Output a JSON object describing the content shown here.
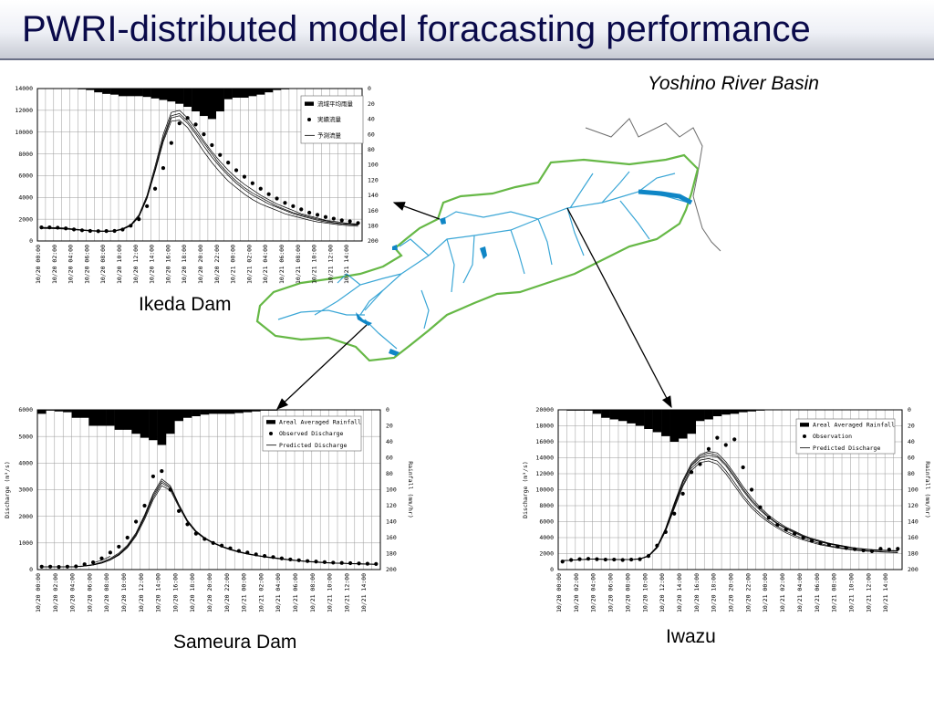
{
  "slide": {
    "title": "PWRI-distributed model foracasting performance",
    "basin_label": "Yoshino River Basin",
    "site_labels": {
      "ikeda": "Ikeda Dam",
      "sameura": "Sameura Dam",
      "iwazu": "Iwazu"
    }
  },
  "colors": {
    "title_text": "#0a0a4a",
    "basin_outline": "#66b846",
    "rivers": "#3aa6d6",
    "reservoirs": "#0f86c6",
    "rainfall_bars": "#000000",
    "observed": "#000000",
    "predicted": "#000000"
  },
  "chart_data": [
    {
      "id": "ikeda",
      "type": "bar+line+scatter",
      "site": "Ikeda Dam",
      "ylabel": "",
      "y2label": "",
      "ylim": [
        0,
        14000
      ],
      "yticks": [
        0,
        2000,
        4000,
        6000,
        8000,
        10000,
        12000,
        14000
      ],
      "y2lim": [
        0,
        200
      ],
      "y2ticks": [
        0,
        20,
        40,
        60,
        80,
        100,
        120,
        140,
        160,
        180,
        200
      ],
      "x_tick_labels": [
        "10/20 00:00",
        "10/20 02:00",
        "10/20 04:00",
        "10/20 06:00",
        "10/20 08:00",
        "10/20 10:00",
        "10/20 12:00",
        "10/20 14:00",
        "10/20 16:00",
        "10/20 18:00",
        "10/20 20:00",
        "10/20 22:00",
        "10/21 00:00",
        "10/21 02:00",
        "10/21 04:00",
        "10/21 06:00",
        "10/21 08:00",
        "10/21 10:00",
        "10/21 12:00",
        "10/21 14:00"
      ],
      "legend": [
        "流域平均雨量",
        "実績流量",
        "予測流量"
      ],
      "grid": true,
      "rainfall_hourly": [
        0,
        0,
        0,
        0,
        0,
        1,
        2,
        5,
        7,
        8,
        10,
        10,
        10,
        11,
        13,
        15,
        17,
        20,
        24,
        30,
        36,
        40,
        30,
        14,
        12,
        12,
        10,
        8,
        5,
        2,
        1,
        0,
        0,
        0,
        0,
        0,
        0,
        0,
        0,
        0
      ],
      "observed_time_h": [
        0,
        1,
        2,
        3,
        4,
        5,
        6,
        7,
        8,
        9,
        10,
        11,
        12,
        13,
        14,
        15,
        16,
        17,
        18,
        19,
        20,
        21,
        22,
        23,
        24,
        25,
        26,
        27,
        28,
        29,
        30,
        31,
        32,
        33,
        34,
        35,
        36,
        37,
        38,
        39
      ],
      "observed_discharge": [
        1250,
        1250,
        1220,
        1150,
        1060,
        980,
        920,
        900,
        910,
        920,
        1050,
        1400,
        2000,
        3200,
        4800,
        6700,
        9000,
        10800,
        11300,
        10700,
        9800,
        8800,
        7900,
        7200,
        6500,
        5900,
        5300,
        4800,
        4300,
        3900,
        3500,
        3200,
        2900,
        2600,
        2400,
        2200,
        2050,
        1900,
        1800,
        1650
      ],
      "predicted_discharge": [
        {
          "start_h": 0,
          "values": [
            1250,
            1240,
            1220,
            1180,
            1100,
            1030,
            970,
            930,
            910,
            950,
            1130,
            1500,
            2400,
            4200,
            6900,
            9800,
            11800,
            12000,
            11300,
            10300,
            9200,
            8200,
            7300,
            6500,
            5800,
            5200,
            4700,
            4200,
            3800,
            3400,
            3100,
            2800,
            2500,
            2300,
            2100,
            1900,
            1800,
            1700,
            1600,
            1550
          ]
        },
        {
          "start_h": 0,
          "values": [
            1200,
            1190,
            1170,
            1130,
            1060,
            990,
            940,
            900,
            880,
            910,
            1080,
            1420,
            2250,
            3950,
            6500,
            9300,
            11300,
            11500,
            10800,
            9800,
            8700,
            7700,
            6800,
            6000,
            5300,
            4700,
            4200,
            3800,
            3400,
            3100,
            2800,
            2500,
            2300,
            2100,
            1900,
            1750,
            1650,
            1550,
            1500,
            1450
          ]
        },
        {
          "start_h": 0,
          "values": [
            1150,
            1140,
            1120,
            1090,
            1030,
            970,
            920,
            880,
            870,
            900,
            1060,
            1380,
            2200,
            3900,
            6400,
            9100,
            11000,
            11100,
            10400,
            9300,
            8200,
            7200,
            6300,
            5500,
            4900,
            4300,
            3800,
            3400,
            3100,
            2800,
            2500,
            2300,
            2100,
            1900,
            1750,
            1650,
            1550,
            1450,
            1400,
            1350
          ]
        },
        {
          "start_h": 0,
          "values": [
            1180,
            1170,
            1150,
            1110,
            1050,
            980,
            930,
            890,
            880,
            920,
            1100,
            1450,
            2300,
            4050,
            6650,
            9500,
            11500,
            11700,
            11000,
            10000,
            9000,
            8000,
            7000,
            6200,
            5500,
            4900,
            4400,
            4000,
            3600,
            3200,
            2900,
            2600,
            2400,
            2200,
            2000,
            1850,
            1700,
            1600,
            1550,
            1500
          ]
        }
      ]
    },
    {
      "id": "sameura",
      "type": "bar+line+scatter",
      "site": "Sameura Dam",
      "ylabel": "Discharge (m³/s)",
      "y2label": "Rainfall (mm/hr)",
      "ylim": [
        0,
        6000
      ],
      "yticks": [
        0,
        1000,
        2000,
        3000,
        4000,
        5000,
        6000
      ],
      "y2lim": [
        0,
        200
      ],
      "y2ticks": [
        0,
        20,
        40,
        60,
        80,
        100,
        120,
        140,
        160,
        180,
        200
      ],
      "x_tick_labels": [
        "10/20 00:00",
        "10/20 02:00",
        "10/20 04:00",
        "10/20 06:00",
        "10/20 08:00",
        "10/20 10:00",
        "10/20 12:00",
        "10/20 14:00",
        "10/20 16:00",
        "10/20 18:00",
        "10/20 20:00",
        "10/20 22:00",
        "10/21 00:00",
        "10/21 02:00",
        "10/21 04:00",
        "10/21 06:00",
        "10/21 08:00",
        "10/21 10:00",
        "10/21 12:00",
        "10/21 14:00"
      ],
      "legend": [
        "Areal Averaged Rainfall",
        "Observed Discharge",
        "Predicted Discharge"
      ],
      "grid": true,
      "rainfall_hourly": [
        5,
        1,
        2,
        3,
        10,
        10,
        20,
        20,
        20,
        25,
        25,
        30,
        35,
        38,
        44,
        30,
        14,
        10,
        8,
        6,
        5,
        5,
        5,
        4,
        3,
        2,
        1,
        1,
        0,
        0,
        0,
        0,
        0,
        0,
        0,
        0,
        0,
        0,
        0,
        0
      ],
      "observed_time_h": [
        0,
        1,
        2,
        3,
        4,
        5,
        6,
        7,
        8,
        9,
        10,
        11,
        12,
        13,
        14,
        15,
        16,
        17,
        18,
        19,
        20,
        21,
        22,
        23,
        24,
        25,
        26,
        27,
        28,
        29,
        30,
        31,
        32,
        33,
        34,
        35,
        36,
        37,
        38,
        39
      ],
      "observed_discharge": [
        110,
        110,
        100,
        110,
        120,
        200,
        270,
        420,
        640,
        860,
        1200,
        1800,
        2400,
        3500,
        3700,
        3000,
        2200,
        1700,
        1350,
        1150,
        1000,
        900,
        800,
        700,
        640,
        570,
        510,
        470,
        420,
        380,
        350,
        320,
        300,
        280,
        260,
        250,
        240,
        230,
        220,
        210
      ],
      "predicted_discharge": [
        {
          "start_h": 0,
          "values": [
            100,
            100,
            100,
            100,
            110,
            140,
            190,
            280,
            420,
            620,
            920,
            1380,
            2050,
            2850,
            3400,
            3150,
            2450,
            1850,
            1450,
            1200,
            1020,
            880,
            770,
            680,
            600,
            540,
            490,
            450,
            410,
            370,
            340,
            310,
            290,
            270,
            250,
            240,
            230,
            220,
            210,
            200
          ]
        },
        {
          "start_h": 0,
          "values": [
            100,
            100,
            100,
            100,
            105,
            130,
            170,
            250,
            370,
            560,
            850,
            1300,
            1950,
            2700,
            3250,
            3050,
            2400,
            1820,
            1420,
            1180,
            1000,
            860,
            750,
            660,
            590,
            530,
            480,
            440,
            400,
            360,
            330,
            300,
            280,
            260,
            245,
            235,
            225,
            215,
            205,
            195
          ]
        },
        {
          "start_h": 0,
          "values": [
            100,
            100,
            100,
            100,
            105,
            130,
            170,
            240,
            360,
            540,
            820,
            1250,
            1880,
            2620,
            3150,
            2980,
            2350,
            1780,
            1400,
            1160,
            990,
            850,
            740,
            650,
            580,
            520,
            470,
            430,
            390,
            355,
            325,
            295,
            275,
            255,
            240,
            230,
            220,
            210,
            200,
            190
          ]
        },
        {
          "start_h": 0,
          "values": [
            100,
            100,
            100,
            100,
            105,
            135,
            175,
            255,
            380,
            580,
            880,
            1330,
            2000,
            2780,
            3320,
            3100,
            2420,
            1830,
            1440,
            1190,
            1010,
            870,
            760,
            670,
            595,
            535,
            485,
            445,
            405,
            365,
            335,
            305,
            285,
            265,
            248,
            238,
            228,
            218,
            208,
            198
          ]
        },
        {
          "start_h": 6,
          "values": [
            250,
            350,
            500
          ]
        }
      ]
    },
    {
      "id": "iwazu",
      "type": "bar+line+scatter",
      "site": "Iwazu",
      "ylabel": "Discharge (m³/s)",
      "y2label": "Rainfall (mm/hr)",
      "ylim": [
        0,
        20000
      ],
      "yticks": [
        0,
        2000,
        4000,
        6000,
        8000,
        10000,
        12000,
        14000,
        16000,
        18000,
        20000
      ],
      "y2lim": [
        0,
        200
      ],
      "y2ticks": [
        0,
        20,
        40,
        60,
        80,
        100,
        120,
        140,
        160,
        180,
        200
      ],
      "x_tick_labels": [
        "10/20 00:00",
        "10/20 02:00",
        "10/20 04:00",
        "10/20 06:00",
        "10/20 08:00",
        "10/20 10:00",
        "10/20 12:00",
        "10/20 14:00",
        "10/20 16:00",
        "10/20 18:00",
        "10/20 20:00",
        "10/20 22:00",
        "10/21 00:00",
        "10/21 02:00",
        "10/21 04:00",
        "10/21 06:00",
        "10/21 08:00",
        "10/21 10:00",
        "10/21 12:00",
        "10/21 14:00"
      ],
      "legend": [
        "Areal Averaged Rainfall",
        "Observation",
        "Predicted Discharge"
      ],
      "grid": true,
      "rainfall_hourly": [
        0,
        1,
        1,
        1,
        5,
        10,
        12,
        14,
        17,
        20,
        24,
        28,
        33,
        40,
        36,
        30,
        14,
        12,
        8,
        6,
        5,
        3,
        2,
        1,
        0,
        0,
        0,
        0,
        0,
        0,
        0,
        0,
        0,
        0,
        0,
        0,
        0,
        0,
        0,
        0
      ],
      "observed_time_h": [
        0,
        1,
        2,
        3,
        4,
        5,
        6,
        7,
        8,
        9,
        10,
        11,
        12,
        13,
        14,
        15,
        16,
        17,
        18,
        19,
        20,
        21,
        22,
        23,
        24,
        25,
        26,
        27,
        28,
        29,
        30,
        31,
        32,
        33,
        34,
        35,
        36,
        37,
        38,
        39
      ],
      "observed_discharge": [
        1000,
        1200,
        1300,
        1350,
        1300,
        1250,
        1250,
        1200,
        1250,
        1300,
        1700,
        3000,
        4700,
        7000,
        9500,
        12200,
        13200,
        15100,
        16500,
        15600,
        16300,
        12800,
        10000,
        7800,
        6500,
        5600,
        5000,
        4500,
        4000,
        3600,
        3300,
        3100,
        2900,
        2700,
        2550,
        2400,
        2300,
        2600,
        2500,
        2600
      ],
      "predicted_discharge": [
        {
          "start_h": 0,
          "values": [
            1100,
            1180,
            1250,
            1300,
            1300,
            1280,
            1250,
            1240,
            1260,
            1350,
            1750,
            2900,
            5200,
            8300,
            11200,
            13300,
            14400,
            14800,
            14600,
            13500,
            12000,
            10400,
            9000,
            7800,
            6800,
            6000,
            5300,
            4800,
            4300,
            3900,
            3600,
            3300,
            3100,
            2900,
            2700,
            2600,
            2500,
            2450,
            2400,
            2350
          ]
        },
        {
          "start_h": 0,
          "values": [
            1100,
            1180,
            1250,
            1300,
            1300,
            1280,
            1250,
            1240,
            1260,
            1330,
            1700,
            2800,
            5000,
            8000,
            10900,
            13000,
            14000,
            14300,
            14100,
            13000,
            11500,
            9900,
            8500,
            7400,
            6500,
            5700,
            5100,
            4600,
            4100,
            3750,
            3450,
            3200,
            3000,
            2800,
            2650,
            2550,
            2450,
            2400,
            2350,
            2300
          ]
        },
        {
          "start_h": 0,
          "values": [
            1100,
            1180,
            1250,
            1300,
            1300,
            1280,
            1250,
            1240,
            1260,
            1320,
            1680,
            2750,
            4900,
            7800,
            10600,
            12700,
            13700,
            13900,
            13600,
            12400,
            10900,
            9300,
            8000,
            7000,
            6100,
            5400,
            4800,
            4300,
            3900,
            3550,
            3250,
            3000,
            2800,
            2650,
            2500,
            2400,
            2320,
            2260,
            2200,
            2150
          ]
        },
        {
          "start_h": 0,
          "values": [
            1100,
            1180,
            1250,
            1300,
            1300,
            1280,
            1250,
            1240,
            1260,
            1340,
            1720,
            2850,
            5100,
            8150,
            11000,
            13100,
            14200,
            14600,
            14300,
            13200,
            11700,
            10100,
            8700,
            7600,
            6600,
            5800,
            5200,
            4700,
            4200,
            3800,
            3500,
            3250,
            3050,
            2850,
            2700,
            2580,
            2480,
            2420,
            2370,
            2320
          ]
        },
        {
          "start_h": 0,
          "values": [
            1100,
            1180,
            1250,
            1300,
            1300,
            1280,
            1250,
            1240,
            1260,
            1310,
            1650,
            2700,
            4800,
            7600,
            10400,
            12400,
            13400,
            13600,
            13200,
            12000,
            10500,
            9000,
            7700,
            6700,
            5900,
            5200,
            4600,
            4100,
            3700,
            3400,
            3100,
            2900,
            2700,
            2550,
            2420,
            2330,
            2250,
            2200,
            2150,
            2100
          ]
        }
      ]
    }
  ]
}
